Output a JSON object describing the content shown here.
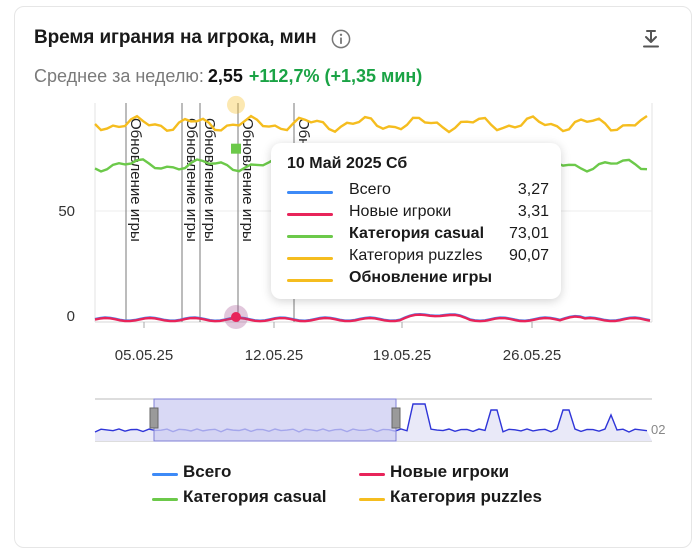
{
  "header": {
    "title": "Время играния на игрока, мин",
    "info_icon": "info-circle-icon",
    "download_icon": "download-icon"
  },
  "summary": {
    "label": "Среднее за неделю:",
    "value": "2,55",
    "change": "+112,7% (+1,35 мин)"
  },
  "colors": {
    "total": "#3d8af7",
    "new_players": "#e8245a",
    "casual": "#6cc94a",
    "puzzles": "#f5bd1f",
    "update": "#f5bd1f",
    "positive": "#1aa345",
    "navigator_fill": "#ccccf2"
  },
  "chart_data": {
    "type": "line",
    "y_ticks": [
      "0",
      "50"
    ],
    "x_ticks": [
      "05.05.25",
      "12.05.25",
      "19.05.25",
      "26.05.25"
    ],
    "event_label": "Обновление игры",
    "navigator_label": "02",
    "series": [
      {
        "name": "Всего"
      },
      {
        "name": "Новые игроки"
      },
      {
        "name": "Категория casual"
      },
      {
        "name": "Категория puzzles"
      }
    ]
  },
  "tooltip": {
    "date": "10 Май 2025 Сб",
    "rows": [
      {
        "name": "Всего",
        "value": "3,27"
      },
      {
        "name": "Новые игроки",
        "value": "3,31"
      },
      {
        "name": "Категория casual",
        "value": "73,01"
      },
      {
        "name": "Категория puzzles",
        "value": "90,07"
      },
      {
        "name": "Обновление игры",
        "value": ""
      }
    ]
  },
  "legend": {
    "items": [
      {
        "label": "Всего"
      },
      {
        "label": "Новые игроки"
      },
      {
        "label": "Категория casual"
      },
      {
        "label": "Категория puzzles"
      }
    ]
  }
}
